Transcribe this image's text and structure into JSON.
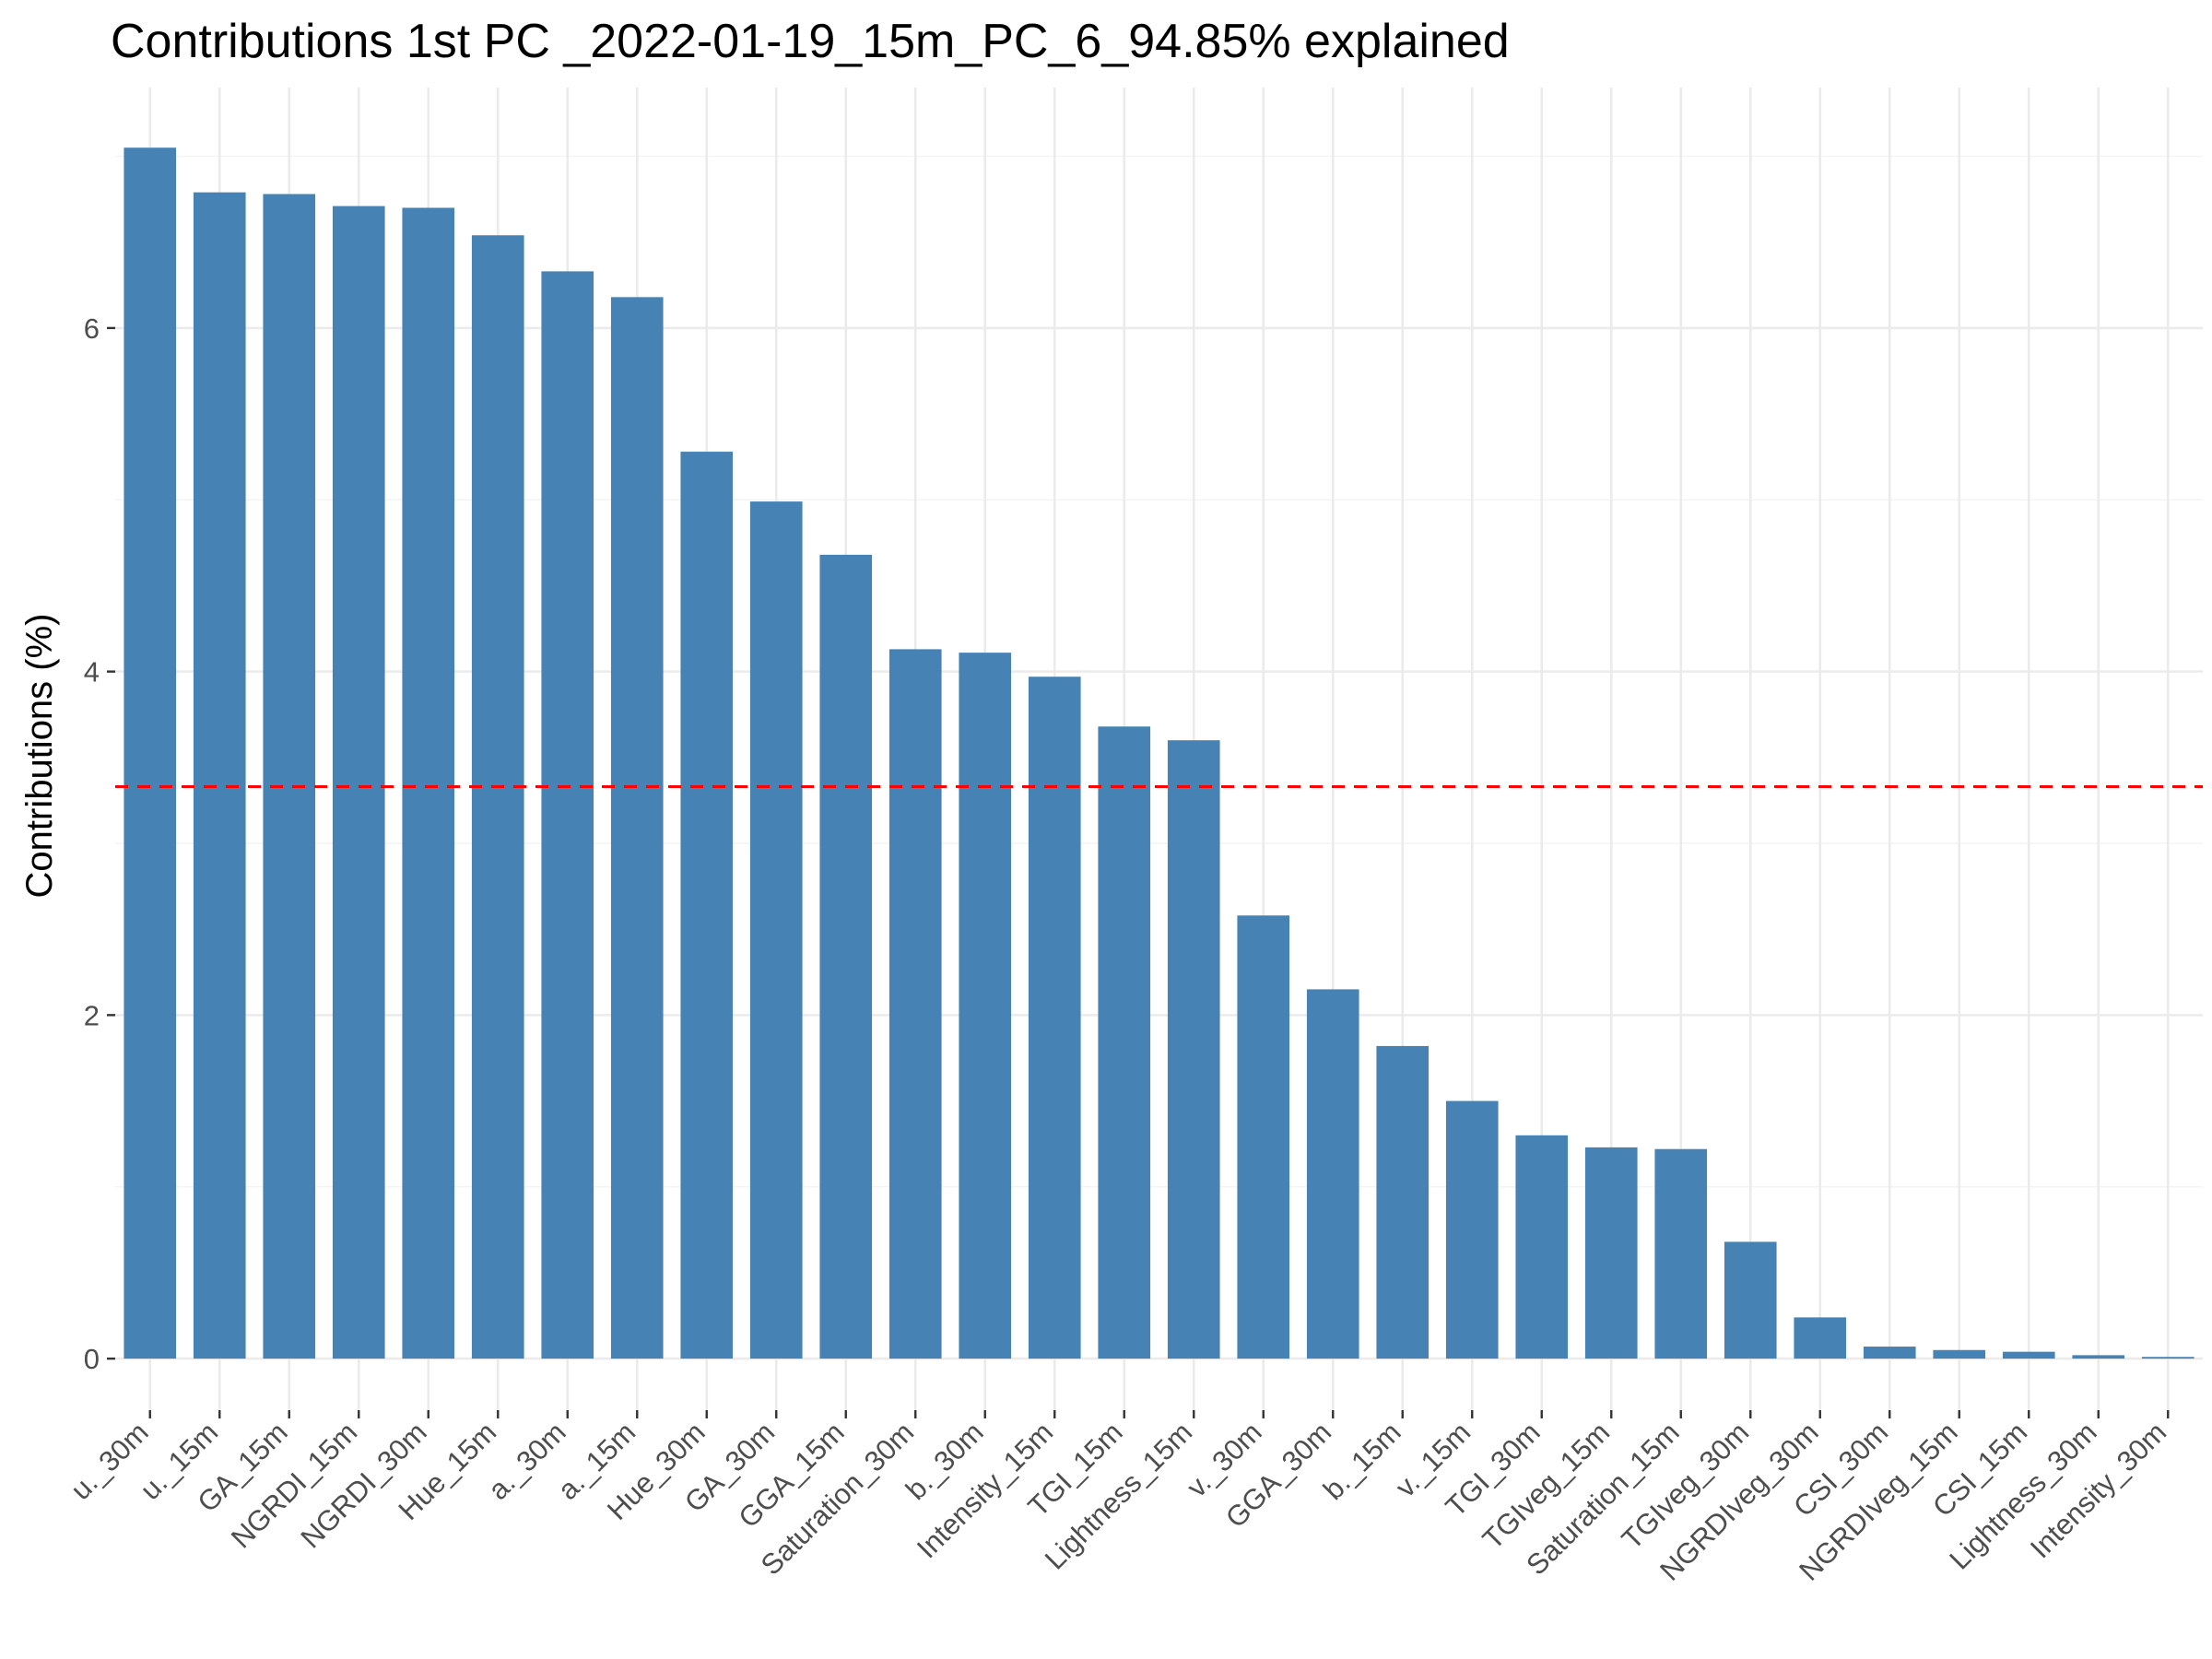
{
  "chart_data": {
    "type": "bar",
    "title": "Contributions 1st PC _2022-01-19_15m_PC_6_94.85% explained",
    "xlabel": "",
    "ylabel": "Contributions (%)",
    "categories": [
      "u._30m",
      "u._15m",
      "GA_15m",
      "NGRDI_15m",
      "NGRDI_30m",
      "Hue_15m",
      "a._30m",
      "a._15m",
      "Hue_30m",
      "GA_30m",
      "GGA_15m",
      "Saturation_30m",
      "b._30m",
      "Intensity_15m",
      "TGI_15m",
      "Lightness_15m",
      "v._30m",
      "GGA_30m",
      "b._15m",
      "v._15m",
      "TGI_30m",
      "TGIveg_15m",
      "Saturation_15m",
      "TGIveg_30m",
      "NGRDIveg_30m",
      "CSI_30m",
      "NGRDIveg_15m",
      "CSI_15m",
      "Lightness_30m",
      "Intensity_30m"
    ],
    "values": [
      7.05,
      6.79,
      6.78,
      6.71,
      6.7,
      6.54,
      6.33,
      6.18,
      5.28,
      4.99,
      4.68,
      4.13,
      4.11,
      3.97,
      3.68,
      3.6,
      2.58,
      2.15,
      1.82,
      1.5,
      1.3,
      1.23,
      1.22,
      0.68,
      0.24,
      0.07,
      0.05,
      0.04,
      0.02,
      0.01
    ],
    "yticks": [
      0,
      2,
      4,
      6
    ],
    "ylim": [
      -0.3,
      7.4
    ],
    "reference_line": 3.33,
    "grid": true,
    "bar_color": "#4682B4",
    "reference_line_color": "#FF0000"
  }
}
